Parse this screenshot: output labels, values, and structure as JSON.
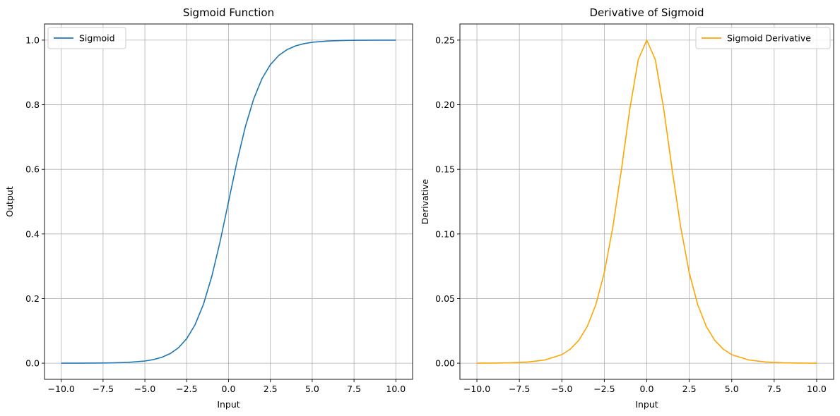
{
  "chart_data": [
    {
      "type": "line",
      "title": "Sigmoid Function",
      "xlabel": "Input",
      "ylabel": "Output",
      "xlim": [
        -11,
        11
      ],
      "ylim": [
        -0.05,
        1.05
      ],
      "xticks": [
        -10,
        -7.5,
        -5,
        -2.5,
        0,
        2.5,
        5,
        7.5,
        10
      ],
      "xtick_labels": [
        "−10.0",
        "−7.5",
        "−5.0",
        "−2.5",
        "0.0",
        "2.5",
        "5.0",
        "7.5",
        "10.0"
      ],
      "yticks": [
        0,
        0.2,
        0.4,
        0.6,
        0.8,
        1.0
      ],
      "ytick_labels": [
        "0.0",
        "0.2",
        "0.4",
        "0.6",
        "0.8",
        "1.0"
      ],
      "grid": true,
      "legend_position": "upper-left",
      "series": [
        {
          "name": "Sigmoid",
          "color": "#1f77b4",
          "x": [
            -10,
            -9,
            -8,
            -7,
            -6,
            -5,
            -4.5,
            -4,
            -3.5,
            -3,
            -2.5,
            -2,
            -1.5,
            -1,
            -0.5,
            0,
            0.5,
            1,
            1.5,
            2,
            2.5,
            3,
            3.5,
            4,
            4.5,
            5,
            6,
            7,
            8,
            9,
            10
          ],
          "y": [
            0.0,
            0.0001,
            0.0003,
            0.0009,
            0.0025,
            0.0067,
            0.011,
            0.018,
            0.0293,
            0.0474,
            0.0759,
            0.1192,
            0.1824,
            0.2689,
            0.3775,
            0.5,
            0.6225,
            0.7311,
            0.8176,
            0.8808,
            0.9241,
            0.9526,
            0.9707,
            0.982,
            0.989,
            0.9933,
            0.9975,
            0.9991,
            0.9997,
            0.9999,
            1.0
          ]
        }
      ]
    },
    {
      "type": "line",
      "title": "Derivative of Sigmoid",
      "xlabel": "Input",
      "ylabel": "Derivative",
      "xlim": [
        -11,
        11
      ],
      "ylim": [
        -0.0125,
        0.2625
      ],
      "xticks": [
        -10,
        -7.5,
        -5,
        -2.5,
        0,
        2.5,
        5,
        7.5,
        10
      ],
      "xtick_labels": [
        "−10.0",
        "−7.5",
        "−5.0",
        "−2.5",
        "0.0",
        "2.5",
        "5.0",
        "7.5",
        "10.0"
      ],
      "yticks": [
        0,
        0.05,
        0.1,
        0.15,
        0.2,
        0.25
      ],
      "ytick_labels": [
        "0.00",
        "0.05",
        "0.10",
        "0.15",
        "0.20",
        "0.25"
      ],
      "grid": true,
      "legend_position": "upper-right",
      "series": [
        {
          "name": "Sigmoid Derivative",
          "color": "#ffa500",
          "x": [
            -10,
            -9,
            -8,
            -7,
            -6,
            -5,
            -4.5,
            -4,
            -3.5,
            -3,
            -2.5,
            -2,
            -1.5,
            -1,
            -0.5,
            0,
            0.5,
            1,
            1.5,
            2,
            2.5,
            3,
            3.5,
            4,
            4.5,
            5,
            6,
            7,
            8,
            9,
            10
          ],
          "y": [
            0.0,
            0.0001,
            0.0003,
            0.0009,
            0.0025,
            0.0066,
            0.0109,
            0.0177,
            0.0285,
            0.0452,
            0.0701,
            0.105,
            0.1491,
            0.1966,
            0.235,
            0.25,
            0.235,
            0.1966,
            0.1491,
            0.105,
            0.0701,
            0.0452,
            0.0285,
            0.0177,
            0.0109,
            0.0066,
            0.0025,
            0.0009,
            0.0003,
            0.0001,
            0.0
          ]
        }
      ]
    }
  ]
}
